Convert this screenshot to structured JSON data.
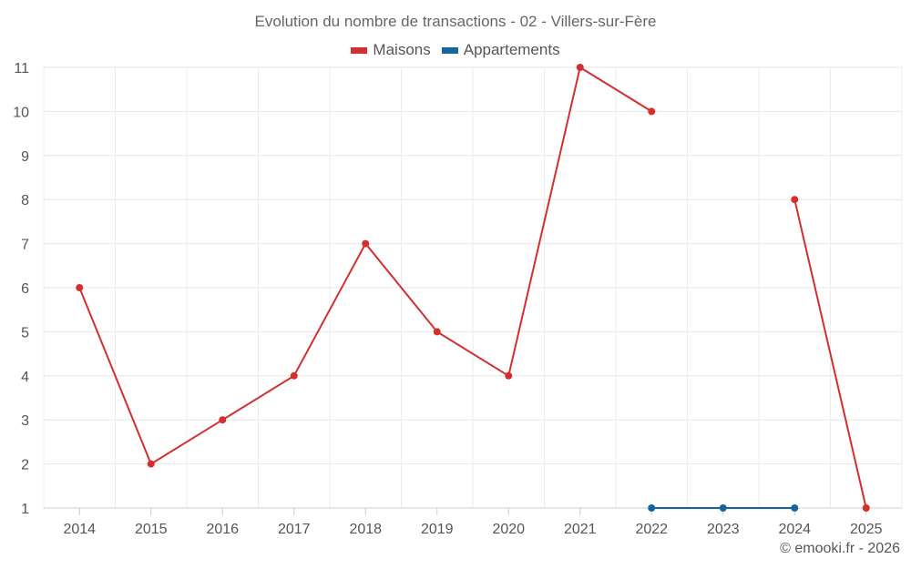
{
  "title": "Evolution du nombre de transactions - 02 - Villers-sur-Fère",
  "credit": "© emooki.fr - 2026",
  "chart_data": {
    "type": "line",
    "title": "Evolution du nombre de transactions - 02 - Villers-sur-Fère",
    "xlabel": "",
    "ylabel": "",
    "categories": [
      "2014",
      "2015",
      "2016",
      "2017",
      "2018",
      "2019",
      "2020",
      "2021",
      "2022",
      "2023",
      "2024",
      "2025"
    ],
    "ylim": [
      1,
      11
    ],
    "yticks": [
      1,
      2,
      3,
      4,
      5,
      6,
      7,
      8,
      9,
      10,
      11
    ],
    "grid": true,
    "legend_position": "top",
    "series": [
      {
        "name": "Maisons",
        "color": "#d32f2f",
        "values": [
          6,
          2,
          3,
          4,
          7,
          5,
          4,
          11,
          10,
          null,
          8,
          1
        ]
      },
      {
        "name": "Appartements",
        "color": "#1565a0",
        "values": [
          null,
          null,
          null,
          null,
          null,
          null,
          null,
          null,
          1,
          1,
          1,
          null
        ]
      }
    ]
  }
}
